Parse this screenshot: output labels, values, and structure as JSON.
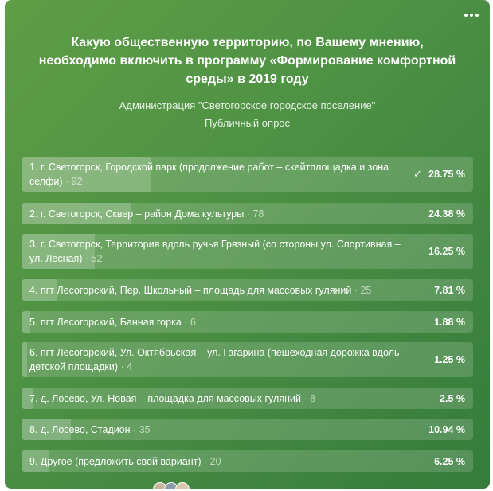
{
  "poll": {
    "title": "Какую общественную территорию, по Вашему мнению, необходимо включить в программу «Формирование комфортной среды» в 2019 году",
    "author": "Администрация \"Светогорское городское поселение\"",
    "type": "Публичный опрос",
    "voted_icon": "checkmark-icon",
    "menu_icon": "more-dots-icon",
    "options": [
      {
        "text": "1. г. Светогорск, Городской парк (продолжение работ – скейтплощадка и зона селфи)",
        "count": "· 92",
        "percent": "28.75 %",
        "share": 28.75,
        "voted": true
      },
      {
        "text": "2. г. Светогорск, Сквер – район Дома культуры",
        "count": "· 78",
        "percent": "24.38 %",
        "share": 24.38
      },
      {
        "text": "3. г. Светогорск, Территория вдоль ручья Грязный (со стороны ул. Спортивная – ул. Лесная)",
        "count": "· 52",
        "percent": "16.25 %",
        "share": 16.25
      },
      {
        "text": "4. пгт Лесогорский, Пер. Школьный – площадь для массовых гуляний",
        "count": "· 25",
        "percent": "7.81 %",
        "share": 7.81
      },
      {
        "text": "5. пгт Лесогорский, Банная горка",
        "count": "· 6",
        "percent": "1.88 %",
        "share": 1.88
      },
      {
        "text": "6. пгт Лесогорский, Ул. Октябрьская – ул. Гагарина (пешеходная дорожка вдоль детской площадки)",
        "count": "· 4",
        "percent": "1.25 %",
        "share": 1.25
      },
      {
        "text": "7. д. Лосево, Ул. Новая – площадка для массовых гуляний",
        "count": "· 8",
        "percent": "2.5 %",
        "share": 2.5
      },
      {
        "text": "8. д. Лосево, Стадион",
        "count": "· 35",
        "percent": "10.94 %",
        "share": 10.94
      },
      {
        "text": "9. Другое (предложить свой вариант)",
        "count": "· 20",
        "percent": "6.25 %",
        "share": 6.25
      }
    ]
  }
}
